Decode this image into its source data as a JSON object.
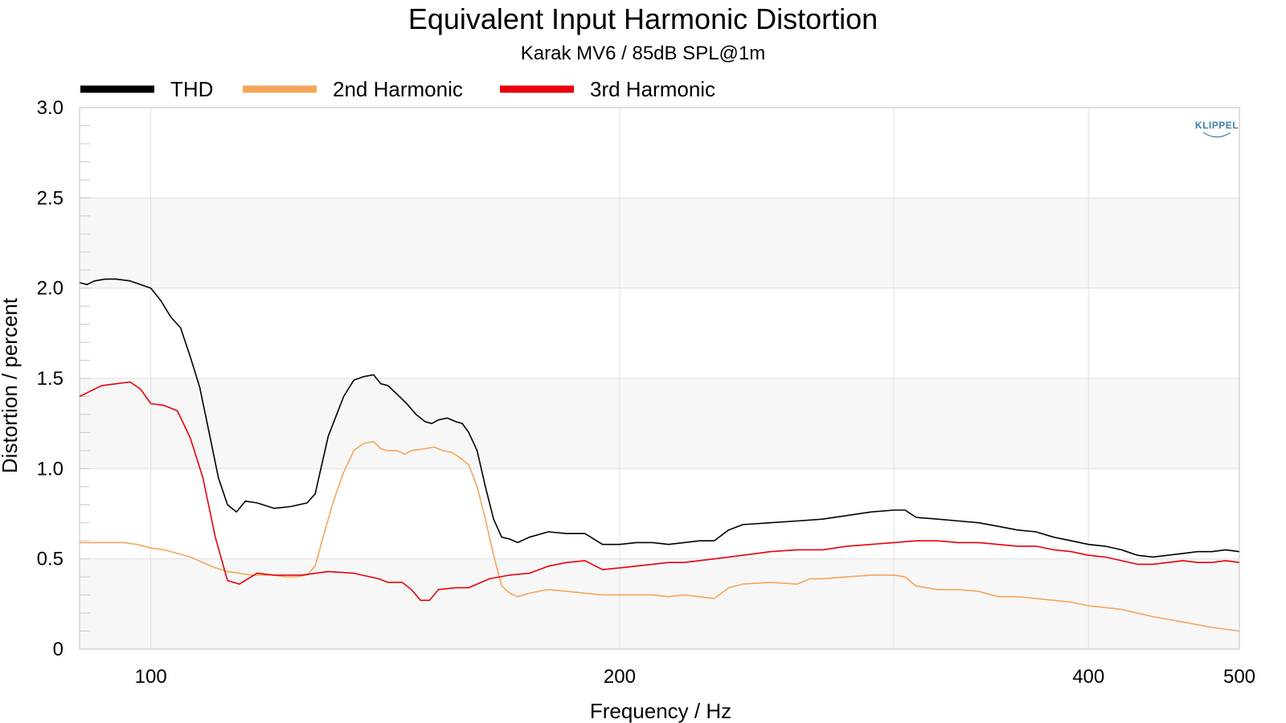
{
  "chart_data": {
    "type": "line",
    "title": "Equivalent Input Harmonic Distortion",
    "subtitle": "Karak MV6 / 85dB SPL@1m",
    "xlabel": "Frequency / Hz",
    "ylabel": "Distortion / percent",
    "x_scale": "log",
    "xlim": [
      90,
      500
    ],
    "ylim": [
      0,
      3.0
    ],
    "x_ticks": [
      {
        "value": 100,
        "label": "100"
      },
      {
        "value": 200,
        "label": "200"
      },
      {
        "value": 400,
        "label": "400"
      },
      {
        "value": 500,
        "label": "500"
      }
    ],
    "y_ticks": [
      {
        "value": 0,
        "label": "0"
      },
      {
        "value": 0.5,
        "label": "0.5"
      },
      {
        "value": 1.0,
        "label": "1.0"
      },
      {
        "value": 1.5,
        "label": "1.5"
      },
      {
        "value": 2.0,
        "label": "2.0"
      },
      {
        "value": 2.5,
        "label": "2.5"
      },
      {
        "value": 3.0,
        "label": "3.0"
      }
    ],
    "legend_position": "top-left",
    "grid": true,
    "logo_text": "KLIPPEL",
    "series": [
      {
        "name": "THD",
        "color": "#000000",
        "points": [
          [
            90,
            2.03
          ],
          [
            91,
            2.02
          ],
          [
            92,
            2.04
          ],
          [
            93.5,
            2.05
          ],
          [
            95,
            2.05
          ],
          [
            97,
            2.04
          ],
          [
            98.5,
            2.02
          ],
          [
            100,
            2.0
          ],
          [
            101.5,
            1.93
          ],
          [
            103,
            1.84
          ],
          [
            104.5,
            1.78
          ],
          [
            106,
            1.62
          ],
          [
            107.5,
            1.45
          ],
          [
            109,
            1.2
          ],
          [
            110.5,
            0.95
          ],
          [
            112,
            0.8
          ],
          [
            113.5,
            0.76
          ],
          [
            115,
            0.82
          ],
          [
            117,
            0.81
          ],
          [
            120,
            0.78
          ],
          [
            123,
            0.79
          ],
          [
            126,
            0.81
          ],
          [
            127.5,
            0.86
          ],
          [
            130,
            1.18
          ],
          [
            133,
            1.4
          ],
          [
            135,
            1.49
          ],
          [
            137,
            1.51
          ],
          [
            139,
            1.52
          ],
          [
            140.5,
            1.47
          ],
          [
            142,
            1.46
          ],
          [
            144,
            1.41
          ],
          [
            146,
            1.36
          ],
          [
            148,
            1.3
          ],
          [
            150,
            1.26
          ],
          [
            151.5,
            1.25
          ],
          [
            153,
            1.27
          ],
          [
            155,
            1.28
          ],
          [
            157,
            1.26
          ],
          [
            158.5,
            1.25
          ],
          [
            160,
            1.2
          ],
          [
            162,
            1.1
          ],
          [
            164,
            0.9
          ],
          [
            166,
            0.72
          ],
          [
            168,
            0.62
          ],
          [
            170,
            0.61
          ],
          [
            172,
            0.59
          ],
          [
            175,
            0.62
          ],
          [
            180,
            0.65
          ],
          [
            185,
            0.64
          ],
          [
            190,
            0.64
          ],
          [
            195,
            0.58
          ],
          [
            200,
            0.58
          ],
          [
            205,
            0.59
          ],
          [
            210,
            0.59
          ],
          [
            215,
            0.58
          ],
          [
            220,
            0.59
          ],
          [
            225,
            0.6
          ],
          [
            230,
            0.6
          ],
          [
            235,
            0.66
          ],
          [
            240,
            0.69
          ],
          [
            250,
            0.7
          ],
          [
            260,
            0.71
          ],
          [
            270,
            0.72
          ],
          [
            280,
            0.74
          ],
          [
            290,
            0.76
          ],
          [
            300,
            0.77
          ],
          [
            305,
            0.77
          ],
          [
            310,
            0.73
          ],
          [
            320,
            0.72
          ],
          [
            330,
            0.71
          ],
          [
            340,
            0.7
          ],
          [
            350,
            0.68
          ],
          [
            360,
            0.66
          ],
          [
            370,
            0.65
          ],
          [
            380,
            0.62
          ],
          [
            390,
            0.6
          ],
          [
            400,
            0.58
          ],
          [
            410,
            0.57
          ],
          [
            420,
            0.55
          ],
          [
            430,
            0.52
          ],
          [
            440,
            0.51
          ],
          [
            450,
            0.52
          ],
          [
            460,
            0.53
          ],
          [
            470,
            0.54
          ],
          [
            480,
            0.54
          ],
          [
            490,
            0.55
          ],
          [
            500,
            0.54
          ]
        ]
      },
      {
        "name": "2nd Harmonic",
        "color": "#f5a55a",
        "points": [
          [
            90,
            0.59
          ],
          [
            92,
            0.59
          ],
          [
            94,
            0.59
          ],
          [
            96,
            0.59
          ],
          [
            98,
            0.58
          ],
          [
            100,
            0.56
          ],
          [
            102,
            0.55
          ],
          [
            104,
            0.53
          ],
          [
            106,
            0.51
          ],
          [
            108,
            0.48
          ],
          [
            110,
            0.45
          ],
          [
            112,
            0.43
          ],
          [
            114,
            0.42
          ],
          [
            116,
            0.41
          ],
          [
            118,
            0.41
          ],
          [
            120,
            0.41
          ],
          [
            122,
            0.4
          ],
          [
            124,
            0.4
          ],
          [
            126,
            0.41
          ],
          [
            127.5,
            0.46
          ],
          [
            129,
            0.62
          ],
          [
            131,
            0.82
          ],
          [
            133,
            0.98
          ],
          [
            135,
            1.1
          ],
          [
            137,
            1.14
          ],
          [
            139,
            1.15
          ],
          [
            140.5,
            1.11
          ],
          [
            142,
            1.1
          ],
          [
            144,
            1.1
          ],
          [
            145.5,
            1.08
          ],
          [
            147,
            1.1
          ],
          [
            150,
            1.11
          ],
          [
            152,
            1.12
          ],
          [
            154,
            1.1
          ],
          [
            156,
            1.09
          ],
          [
            158,
            1.06
          ],
          [
            160,
            1.02
          ],
          [
            162,
            0.9
          ],
          [
            164,
            0.72
          ],
          [
            166,
            0.52
          ],
          [
            168,
            0.35
          ],
          [
            170,
            0.31
          ],
          [
            172,
            0.29
          ],
          [
            175,
            0.31
          ],
          [
            180,
            0.33
          ],
          [
            185,
            0.32
          ],
          [
            190,
            0.31
          ],
          [
            195,
            0.3
          ],
          [
            200,
            0.3
          ],
          [
            210,
            0.3
          ],
          [
            215,
            0.29
          ],
          [
            220,
            0.3
          ],
          [
            225,
            0.29
          ],
          [
            230,
            0.28
          ],
          [
            235,
            0.34
          ],
          [
            240,
            0.36
          ],
          [
            250,
            0.37
          ],
          [
            260,
            0.36
          ],
          [
            265,
            0.39
          ],
          [
            270,
            0.39
          ],
          [
            280,
            0.4
          ],
          [
            290,
            0.41
          ],
          [
            300,
            0.41
          ],
          [
            305,
            0.4
          ],
          [
            310,
            0.35
          ],
          [
            320,
            0.33
          ],
          [
            330,
            0.33
          ],
          [
            340,
            0.32
          ],
          [
            350,
            0.29
          ],
          [
            360,
            0.29
          ],
          [
            370,
            0.28
          ],
          [
            380,
            0.27
          ],
          [
            390,
            0.26
          ],
          [
            400,
            0.24
          ],
          [
            420,
            0.22
          ],
          [
            440,
            0.18
          ],
          [
            460,
            0.15
          ],
          [
            480,
            0.12
          ],
          [
            500,
            0.1
          ]
        ]
      },
      {
        "name": "3rd Harmonic",
        "color": "#e8000b",
        "points": [
          [
            90,
            1.4
          ],
          [
            91.5,
            1.43
          ],
          [
            93,
            1.46
          ],
          [
            95,
            1.47
          ],
          [
            97,
            1.48
          ],
          [
            98.5,
            1.44
          ],
          [
            100,
            1.36
          ],
          [
            102,
            1.35
          ],
          [
            104,
            1.32
          ],
          [
            106,
            1.17
          ],
          [
            108,
            0.95
          ],
          [
            110,
            0.62
          ],
          [
            112,
            0.38
          ],
          [
            114,
            0.36
          ],
          [
            117,
            0.42
          ],
          [
            120,
            0.41
          ],
          [
            125,
            0.41
          ],
          [
            130,
            0.43
          ],
          [
            135,
            0.42
          ],
          [
            140,
            0.39
          ],
          [
            142,
            0.37
          ],
          [
            145,
            0.37
          ],
          [
            147,
            0.33
          ],
          [
            149,
            0.27
          ],
          [
            151,
            0.27
          ],
          [
            153,
            0.33
          ],
          [
            157,
            0.34
          ],
          [
            160,
            0.34
          ],
          [
            165,
            0.39
          ],
          [
            170,
            0.41
          ],
          [
            175,
            0.42
          ],
          [
            180,
            0.46
          ],
          [
            185,
            0.48
          ],
          [
            190,
            0.49
          ],
          [
            195,
            0.44
          ],
          [
            200,
            0.45
          ],
          [
            205,
            0.46
          ],
          [
            210,
            0.47
          ],
          [
            215,
            0.48
          ],
          [
            220,
            0.48
          ],
          [
            230,
            0.5
          ],
          [
            240,
            0.52
          ],
          [
            250,
            0.54
          ],
          [
            260,
            0.55
          ],
          [
            270,
            0.55
          ],
          [
            280,
            0.57
          ],
          [
            290,
            0.58
          ],
          [
            300,
            0.59
          ],
          [
            310,
            0.6
          ],
          [
            320,
            0.6
          ],
          [
            330,
            0.59
          ],
          [
            340,
            0.59
          ],
          [
            350,
            0.58
          ],
          [
            360,
            0.57
          ],
          [
            370,
            0.57
          ],
          [
            380,
            0.55
          ],
          [
            390,
            0.54
          ],
          [
            400,
            0.52
          ],
          [
            410,
            0.51
          ],
          [
            420,
            0.49
          ],
          [
            430,
            0.47
          ],
          [
            440,
            0.47
          ],
          [
            450,
            0.48
          ],
          [
            460,
            0.49
          ],
          [
            470,
            0.48
          ],
          [
            480,
            0.48
          ],
          [
            490,
            0.49
          ],
          [
            500,
            0.48
          ]
        ]
      }
    ]
  }
}
